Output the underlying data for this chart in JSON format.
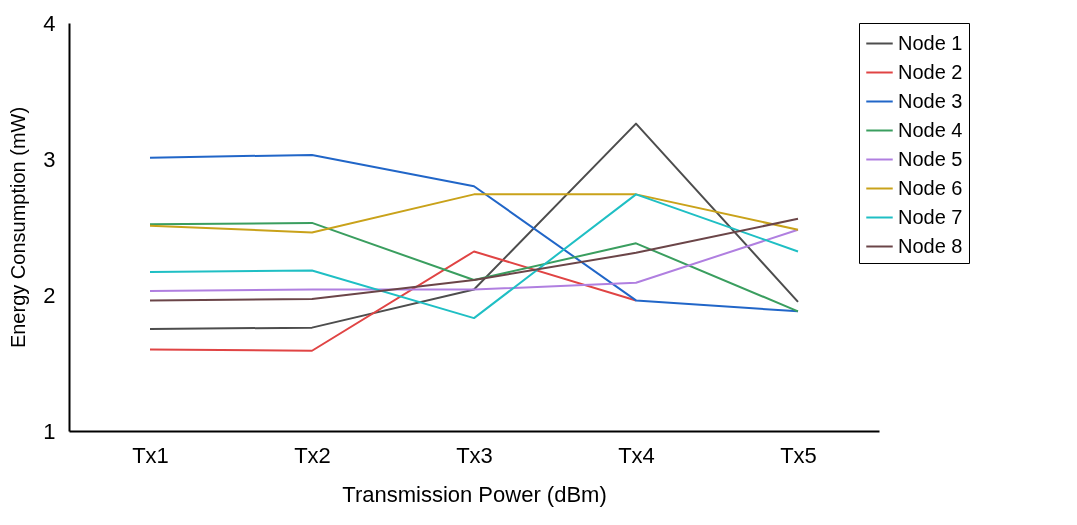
{
  "chart_data": {
    "type": "line",
    "xlabel": "Transmission Power (dBm)",
    "ylabel": "Energy Consumption (mW)",
    "categories": [
      "Tx1",
      "Tx2",
      "Tx3",
      "Tx4",
      "Tx5"
    ],
    "ylim": [
      1,
      4
    ],
    "yticks": [
      1,
      2,
      3,
      4
    ],
    "grid": false,
    "legend": "right",
    "series": [
      {
        "name": "Node 1",
        "color": "#4d4d4d",
        "values": [
          1.75,
          1.76,
          2.04,
          3.26,
          1.95
        ]
      },
      {
        "name": "Node 2",
        "color": "#e04444",
        "values": [
          1.6,
          1.59,
          2.32,
          1.96,
          null
        ]
      },
      {
        "name": "Node 3",
        "color": "#2166c8",
        "values": [
          3.01,
          3.03,
          2.8,
          1.96,
          1.88
        ]
      },
      {
        "name": "Node 4",
        "color": "#3a9e5f",
        "values": [
          2.52,
          2.53,
          2.11,
          2.38,
          1.88
        ]
      },
      {
        "name": "Node 5",
        "color": "#b07fe0",
        "values": [
          2.03,
          2.04,
          2.04,
          2.09,
          2.48
        ]
      },
      {
        "name": "Node 6",
        "color": "#c9a21a",
        "values": [
          2.51,
          2.46,
          2.74,
          2.74,
          2.48
        ]
      },
      {
        "name": "Node 7",
        "color": "#1fbfc4",
        "values": [
          2.17,
          2.18,
          1.83,
          2.74,
          2.32
        ]
      },
      {
        "name": "Node 8",
        "color": "#6b4548",
        "values": [
          1.96,
          1.97,
          2.11,
          2.31,
          2.56
        ]
      }
    ]
  }
}
